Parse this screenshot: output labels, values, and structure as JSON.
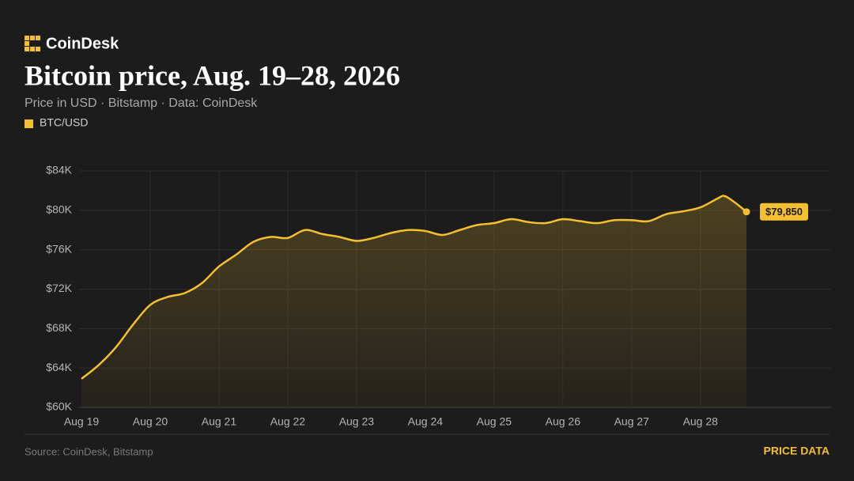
{
  "brand": "CoinDesk",
  "footer": {
    "source": "Source: CoinDesk, Bitstamp",
    "link": "PRICE DATA"
  },
  "chart_data": {
    "type": "line",
    "title": "Bitcoin price, Aug. 19–28, 2026",
    "subtitle": "Price in USD · Bitstamp · Data: CoinDesk",
    "x": [
      0,
      0.25,
      0.5,
      0.75,
      1,
      1.25,
      1.5,
      1.75,
      2,
      2.25,
      2.5,
      2.75,
      3,
      3.25,
      3.5,
      3.75,
      4,
      4.25,
      4.5,
      4.75,
      5,
      5.25,
      5.5,
      5.75,
      6,
      6.25,
      6.5,
      6.75,
      7,
      7.25,
      7.5,
      7.75,
      8,
      8.25,
      8.5,
      8.75,
      9,
      9.25,
      9.35,
      9.5,
      9.67
    ],
    "series": [
      {
        "name": "BTC/USD",
        "color": "#f5c030",
        "values": [
          62900,
          64300,
          66100,
          68400,
          70400,
          71200,
          71600,
          72600,
          74300,
          75500,
          76800,
          77300,
          77200,
          78000,
          77600,
          77300,
          76900,
          77200,
          77700,
          78000,
          77900,
          77500,
          78000,
          78500,
          78700,
          79100,
          78800,
          78700,
          79100,
          78900,
          78700,
          79000,
          79000,
          78900,
          79600,
          79900,
          80300,
          81200,
          81450,
          80800,
          79850
        ],
        "value_labels": [
          null,
          null,
          null,
          null,
          null,
          null,
          null,
          null,
          null,
          null,
          null,
          null,
          null,
          null,
          null,
          null,
          null,
          null,
          null,
          null,
          null,
          null,
          null,
          null,
          null,
          null,
          null,
          null,
          null,
          null,
          null,
          null,
          null,
          null,
          null,
          null,
          null,
          null,
          null,
          null,
          "$79,850"
        ]
      }
    ],
    "xlim": [
      0,
      10.9
    ],
    "xticks": [
      {
        "value": 0,
        "label": "Aug 19"
      },
      {
        "value": 1,
        "label": "Aug 20"
      },
      {
        "value": 2,
        "label": "Aug 21"
      },
      {
        "value": 3,
        "label": "Aug 22"
      },
      {
        "value": 4,
        "label": "Aug 23"
      },
      {
        "value": 5,
        "label": "Aug 24"
      },
      {
        "value": 6,
        "label": "Aug 25"
      },
      {
        "value": 7,
        "label": "Aug 26"
      },
      {
        "value": 8,
        "label": "Aug 27"
      },
      {
        "value": 9,
        "label": "Aug 28"
      }
    ],
    "ylim": [
      60000,
      84000
    ],
    "yticks": [
      {
        "value": 60000,
        "label": "$60K"
      },
      {
        "value": 64000,
        "label": "$64K"
      },
      {
        "value": 68000,
        "label": "$68K"
      },
      {
        "value": 72000,
        "label": "$72K"
      },
      {
        "value": 76000,
        "label": "$76K"
      },
      {
        "value": 80000,
        "label": "$80K"
      },
      {
        "value": 84000,
        "label": "$84K"
      }
    ],
    "grid": true,
    "legend": "top-left"
  }
}
